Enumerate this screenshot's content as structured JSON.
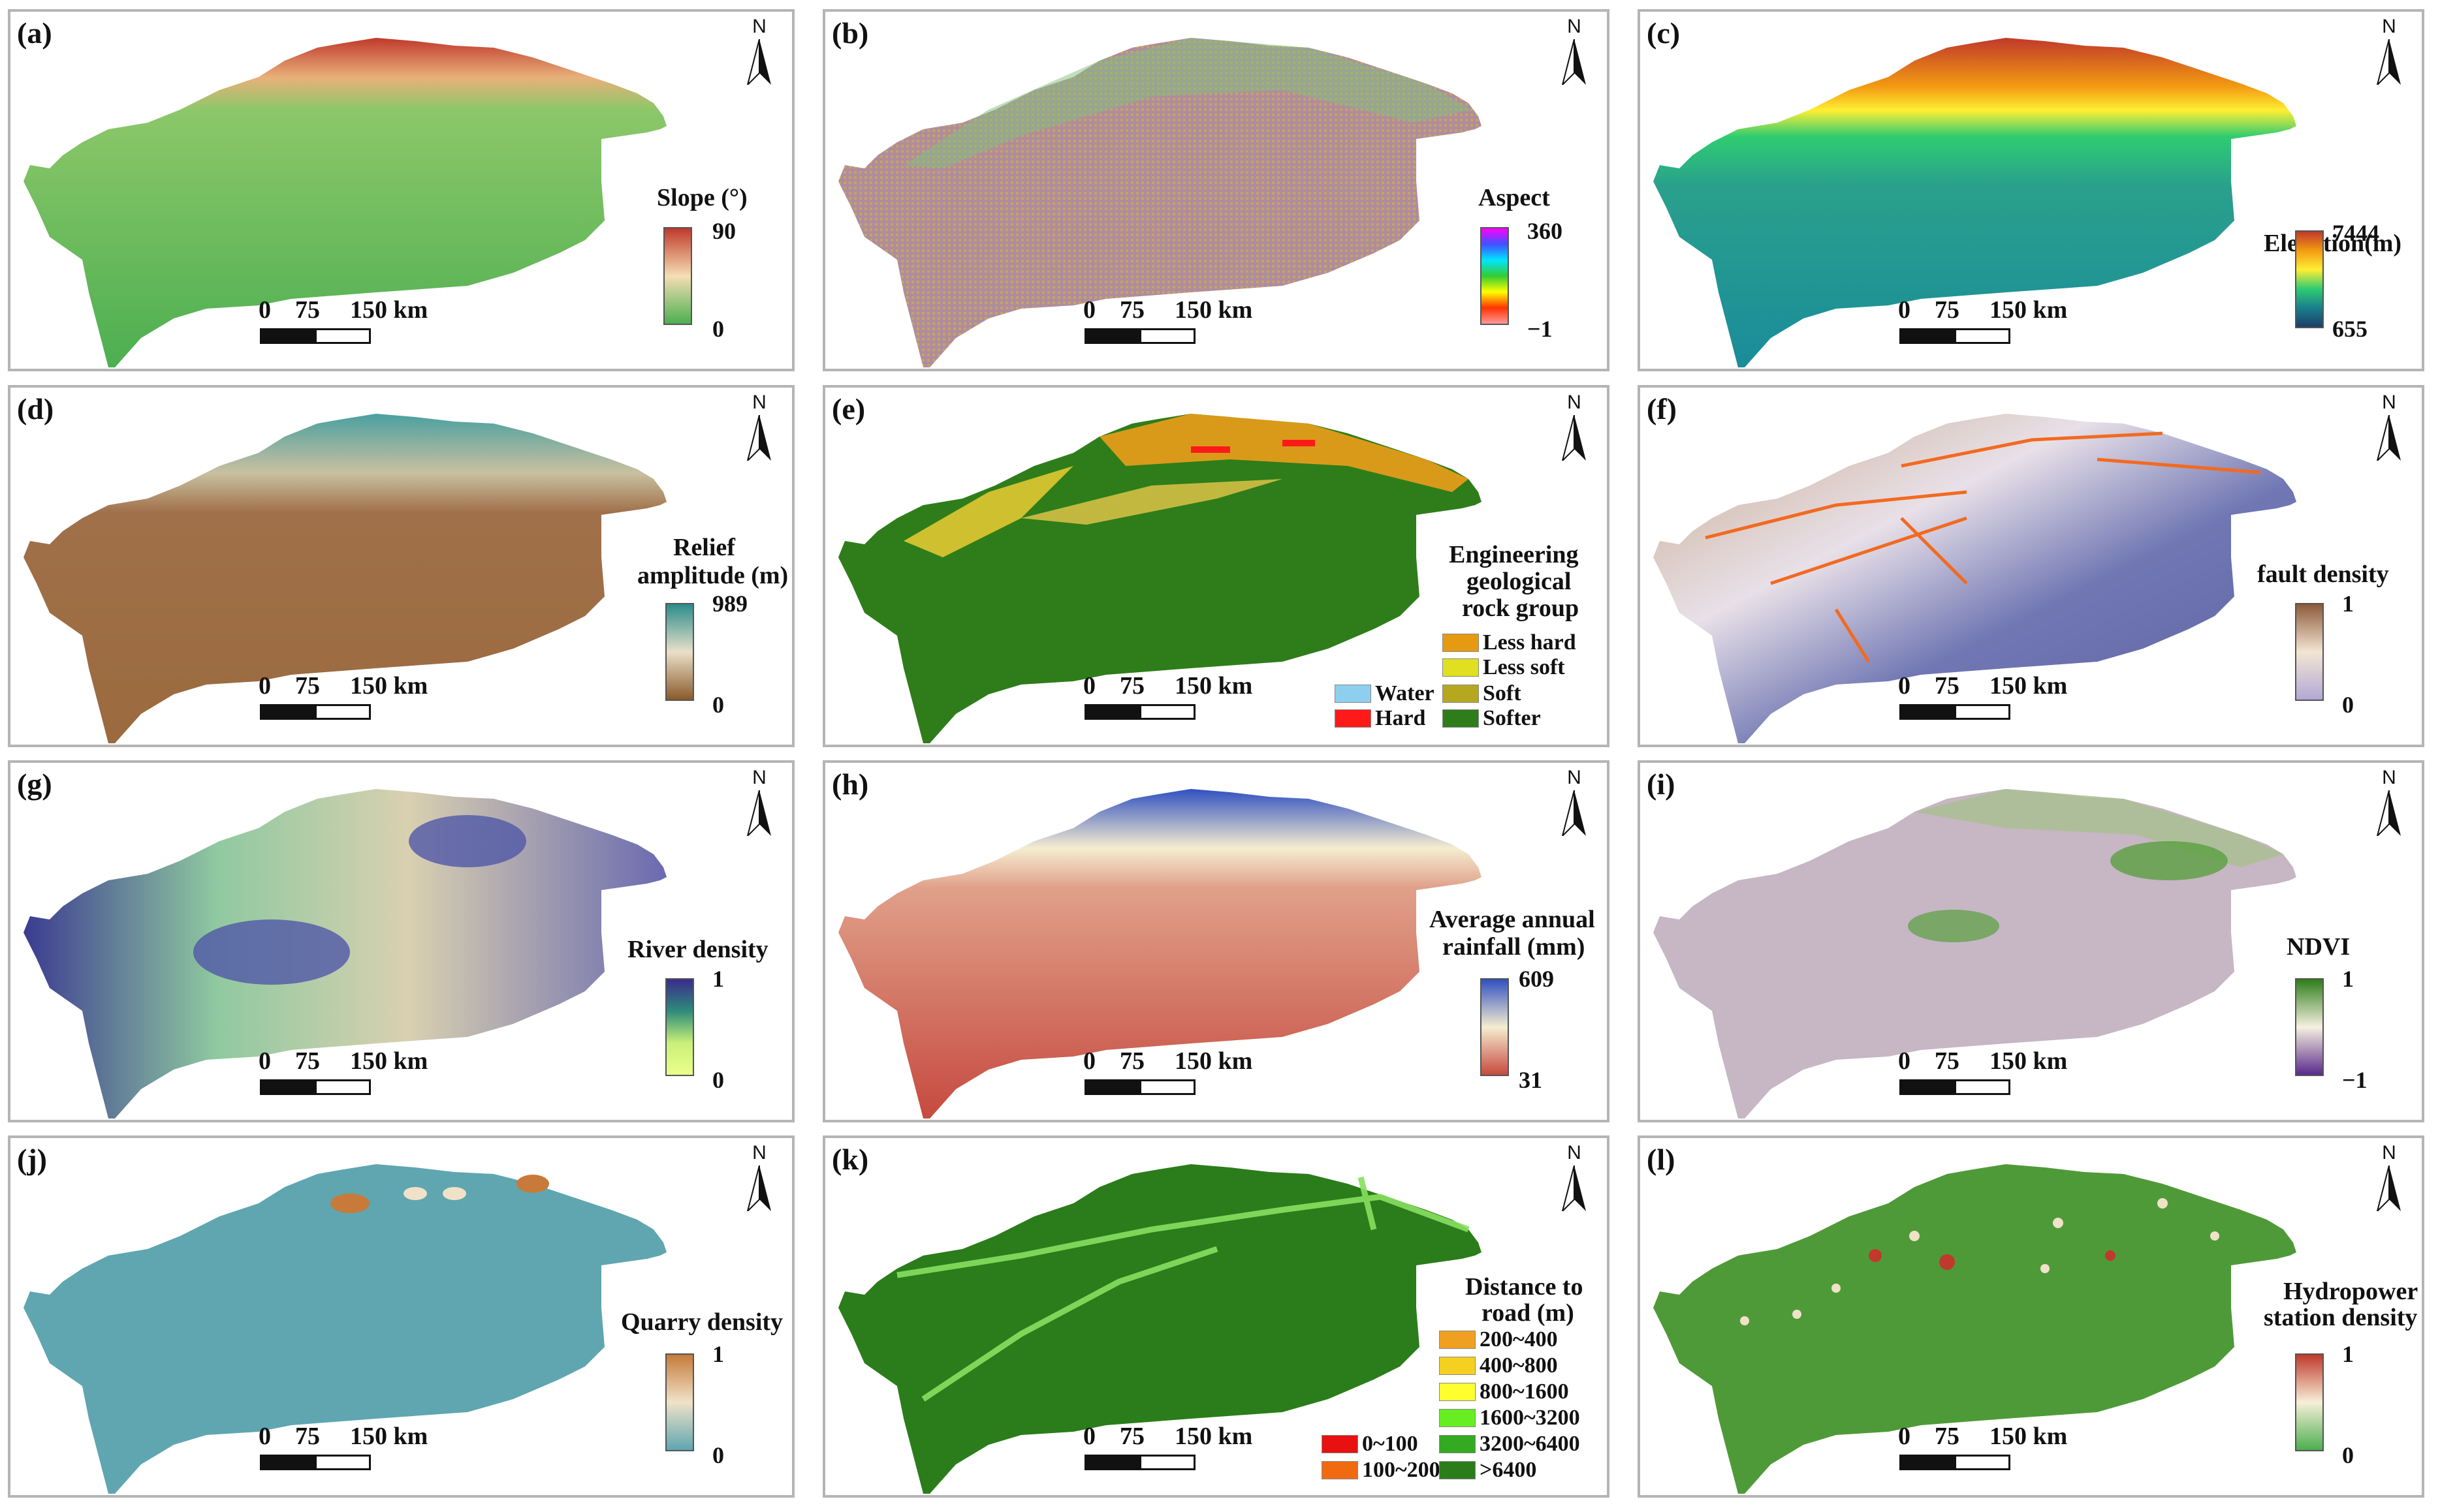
{
  "panels": [
    {
      "label": "(a)",
      "legend_title": "Slope (°)",
      "max": "90",
      "min": "0",
      "colors": [
        "#ffffff",
        "#6aa84f"
      ],
      "ramp": [
        "#c0392b",
        "#f5deb3",
        "#4caf50"
      ]
    },
    {
      "label": "(b)",
      "legend_title": "Aspect",
      "max": "360",
      "min": "−1",
      "ramp": [
        "#ff00ff",
        "#3f51ff",
        "#00e5ff",
        "#33cc33",
        "#ffff00",
        "#ff3300",
        "#ff6666"
      ]
    },
    {
      "label": "(c)",
      "legend_title": "Elevation(m)",
      "max": "7444",
      "min": "655",
      "ramp": [
        "#c0392b",
        "#f39c12",
        "#ffee33",
        "#2ecc71",
        "#1a7f8c",
        "#1b3f6b"
      ]
    },
    {
      "label": "(d)",
      "legend_title_1": "Relief",
      "legend_title_2": "amplitude (m)",
      "max": "989",
      "min": "0",
      "ramp": [
        "#2a8c8c",
        "#e9e0c8",
        "#8b5a2b"
      ]
    },
    {
      "label": "(e)",
      "legend_title_1": "Engineering",
      "legend_title_2": "geological",
      "legend_title_3": "rock group",
      "categories": [
        {
          "name": "Less hard",
          "color": "#e69a12"
        },
        {
          "name": "Less soft",
          "color": "#e0e020"
        },
        {
          "name": "Water",
          "color": "#8ecff0"
        },
        {
          "name": "Soft",
          "color": "#b5a820"
        },
        {
          "name": "Hard",
          "color": "#ff1a1a"
        },
        {
          "name": "Softer",
          "color": "#2e7d1a"
        }
      ]
    },
    {
      "label": "(f)",
      "legend_title": "fault density",
      "max": "1",
      "min": "0",
      "ramp": [
        "#8c5a3a",
        "#f3e5d3",
        "#b3a8d6"
      ]
    },
    {
      "label": "(g)",
      "legend_title": "River density",
      "max": "1",
      "min": "0",
      "ramp": [
        "#3b2b8c",
        "#2e8c7a",
        "#c9f07a",
        "#e9ff8a"
      ]
    },
    {
      "label": "(h)",
      "legend_title_1": "Average annual",
      "legend_title_2": "rainfall (mm)",
      "max": "609",
      "min": "31",
      "ramp": [
        "#3050c0",
        "#f5edd0",
        "#c64a3f"
      ]
    },
    {
      "label": "(i)",
      "legend_title": "NDVI",
      "max": "1",
      "min": "−1",
      "ramp": [
        "#2e7d1a",
        "#f5f0e0",
        "#5a2a8c"
      ]
    },
    {
      "label": "(j)",
      "legend_title": "Quarry density",
      "max": "1",
      "min": "0",
      "ramp": [
        "#c77a3a",
        "#efe2c8",
        "#5fa6b0"
      ]
    },
    {
      "label": "(k)",
      "legend_title_1": "Distance to",
      "legend_title_2": "road (m)",
      "categories": [
        {
          "name": "200~400",
          "color": "#f0a020"
        },
        {
          "name": "400~800",
          "color": "#f5d020"
        },
        {
          "name": "800~1600",
          "color": "#ffff30"
        },
        {
          "name": "1600~3200",
          "color": "#66ee22"
        },
        {
          "name": "0~100",
          "color": "#e81010"
        },
        {
          "name": "3200~6400",
          "color": "#33aa22"
        },
        {
          "name": "100~200",
          "color": "#f26a10"
        },
        {
          "name": ">6400",
          "color": "#2a7d1a"
        }
      ]
    },
    {
      "label": "(l)",
      "legend_title_1": "Hydropower",
      "legend_title_2": "station density",
      "max": "1",
      "min": "0",
      "ramp": [
        "#c0392b",
        "#f7efd8",
        "#4caf50"
      ]
    }
  ],
  "north_letter": "N",
  "scale": {
    "t0": "0",
    "t75": "75",
    "t150": "150 km"
  }
}
